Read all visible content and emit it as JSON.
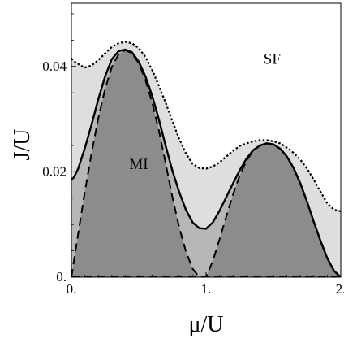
{
  "chart_data": {
    "type": "area",
    "xlabel": "μ/U",
    "ylabel": "J/U",
    "xlim": [
      0,
      2
    ],
    "ylim": [
      0,
      0.052
    ],
    "x_ticks": [
      {
        "value": 0,
        "label": "0."
      },
      {
        "value": 1,
        "label": "1."
      },
      {
        "value": 2,
        "label": "2."
      }
    ],
    "y_ticks": [
      {
        "value": 0,
        "label": "0."
      },
      {
        "value": 0.02,
        "label": "0.02"
      },
      {
        "value": 0.04,
        "label": "0.04"
      }
    ],
    "annotations": [
      {
        "text": "MI",
        "x": 0.5,
        "y": 0.0205
      },
      {
        "text": "SF",
        "x": 1.49,
        "y": 0.0405
      }
    ],
    "grid": false,
    "series": [
      {
        "style": "dotted",
        "x": [
          0.0,
          0.02,
          0.06,
          0.1,
          0.15,
          0.2,
          0.25,
          0.3,
          0.35,
          0.4,
          0.45,
          0.5,
          0.55,
          0.6,
          0.65,
          0.7,
          0.75,
          0.8,
          0.85,
          0.9,
          0.95,
          1.0,
          1.05,
          1.1,
          1.15,
          1.2,
          1.25,
          1.3,
          1.35,
          1.4,
          1.45,
          1.5,
          1.55,
          1.6,
          1.65,
          1.7,
          1.75,
          1.8,
          1.85,
          1.9,
          1.95,
          2.0
        ],
        "y": [
          0.0415,
          0.041,
          0.0403,
          0.0398,
          0.0402,
          0.0412,
          0.0425,
          0.0437,
          0.0444,
          0.0447,
          0.0444,
          0.0435,
          0.0418,
          0.0393,
          0.0363,
          0.0331,
          0.0296,
          0.0263,
          0.0235,
          0.0215,
          0.0207,
          0.0206,
          0.021,
          0.0218,
          0.0229,
          0.024,
          0.0249,
          0.0254,
          0.0258,
          0.026,
          0.026,
          0.0258,
          0.0254,
          0.0246,
          0.0236,
          0.0223,
          0.0206,
          0.0185,
          0.0162,
          0.014,
          0.0128,
          0.0125
        ]
      },
      {
        "style": "solid",
        "x": [
          0.0,
          0.02,
          0.05,
          0.1,
          0.15,
          0.2,
          0.25,
          0.3,
          0.35,
          0.4,
          0.45,
          0.5,
          0.55,
          0.6,
          0.65,
          0.7,
          0.75,
          0.8,
          0.85,
          0.9,
          0.95,
          1.0,
          1.05,
          1.1,
          1.15,
          1.2,
          1.25,
          1.3,
          1.35,
          1.4,
          1.45,
          1.5,
          1.55,
          1.6,
          1.65,
          1.7,
          1.75,
          1.8,
          1.85,
          1.9,
          1.95,
          2.0
        ],
        "y": [
          0.0185,
          0.019,
          0.0206,
          0.0245,
          0.029,
          0.0338,
          0.0381,
          0.0414,
          0.0429,
          0.0432,
          0.0427,
          0.0409,
          0.0381,
          0.0344,
          0.0299,
          0.0249,
          0.0202,
          0.0162,
          0.0128,
          0.0104,
          0.0093,
          0.0092,
          0.0104,
          0.0126,
          0.0152,
          0.0178,
          0.0203,
          0.0225,
          0.0241,
          0.025,
          0.0254,
          0.0252,
          0.0244,
          0.0229,
          0.0207,
          0.0178,
          0.0143,
          0.0105,
          0.0069,
          0.0036,
          0.0012,
          0.0
        ]
      },
      {
        "style": "dashed",
        "x": [
          0.0,
          0.05,
          0.1,
          0.15,
          0.2,
          0.25,
          0.3,
          0.35,
          0.4,
          0.45,
          0.5,
          0.55,
          0.6,
          0.65,
          0.7,
          0.75,
          0.8,
          0.85,
          0.9,
          0.95,
          1.0,
          1.05,
          1.1,
          1.15,
          1.2,
          1.25,
          1.3,
          1.35,
          1.4,
          1.45,
          1.5,
          1.55,
          1.6,
          1.65,
          1.7,
          1.75,
          1.8,
          1.85,
          1.9,
          1.95,
          2.0
        ],
        "y": [
          0.0,
          0.0082,
          0.0162,
          0.0236,
          0.0302,
          0.0357,
          0.0399,
          0.0423,
          0.0431,
          0.0425,
          0.0406,
          0.0374,
          0.0331,
          0.0278,
          0.0216,
          0.0152,
          0.0095,
          0.0049,
          0.0016,
          0.0,
          0.0,
          0.0031,
          0.0072,
          0.0115,
          0.0157,
          0.0193,
          0.0221,
          0.024,
          0.025,
          0.0254,
          0.0252,
          0.0244,
          0.0229,
          0.0207,
          0.0178,
          0.0143,
          0.0105,
          0.0069,
          0.0036,
          0.0012,
          0.0
        ]
      }
    ]
  },
  "colors": {
    "mi_fill": "#8c8c8c",
    "solid_fill": "#b7b7b7",
    "dotted_fill": "#dedede",
    "line": "#000000"
  }
}
